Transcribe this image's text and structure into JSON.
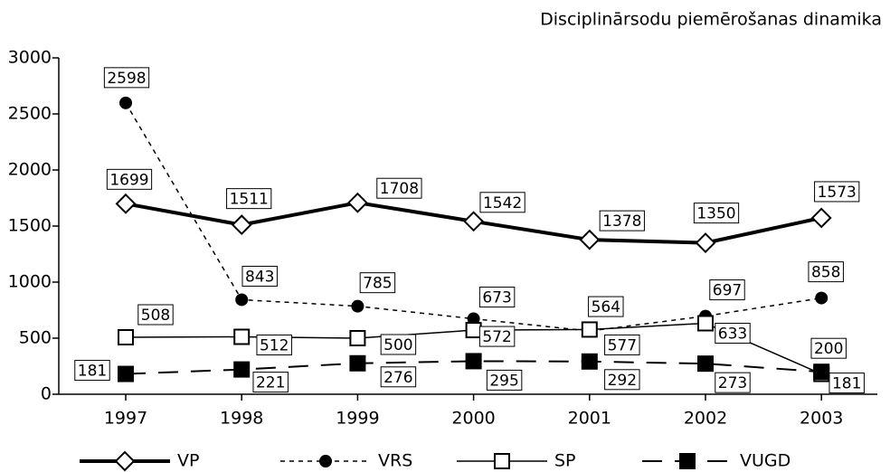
{
  "chart_data": {
    "type": "line",
    "title": "Disciplinārsodu piemērošanas dinamika",
    "categories": [
      "1997",
      "1998",
      "1999",
      "2000",
      "2001",
      "2002",
      "2003"
    ],
    "series": [
      {
        "name": "VP",
        "color": "#000000",
        "marker": "diamond",
        "line_style": "solid",
        "line_width": 4,
        "values": [
          1699,
          1511,
          1708,
          1542,
          1378,
          1350,
          1573
        ]
      },
      {
        "name": "VRS",
        "color": "#000000",
        "marker": "circle",
        "line_style": "dashed",
        "line_width": 1.5,
        "values": [
          2598,
          843,
          785,
          673,
          564,
          697,
          858
        ]
      },
      {
        "name": "SP",
        "color": "#000000",
        "marker": "open-square",
        "line_style": "solid",
        "line_width": 1.5,
        "values": [
          508,
          512,
          500,
          572,
          577,
          633,
          181
        ]
      },
      {
        "name": "VUGD",
        "color": "#000000",
        "marker": "filled-square",
        "line_style": "long-dashed",
        "line_width": 2,
        "values": [
          181,
          221,
          276,
          295,
          292,
          273,
          200
        ]
      }
    ],
    "ylim": [
      0,
      3000
    ],
    "yticks": [
      0,
      500,
      1000,
      1500,
      2000,
      2500,
      3000
    ],
    "grid": false,
    "legend": "bottom"
  }
}
